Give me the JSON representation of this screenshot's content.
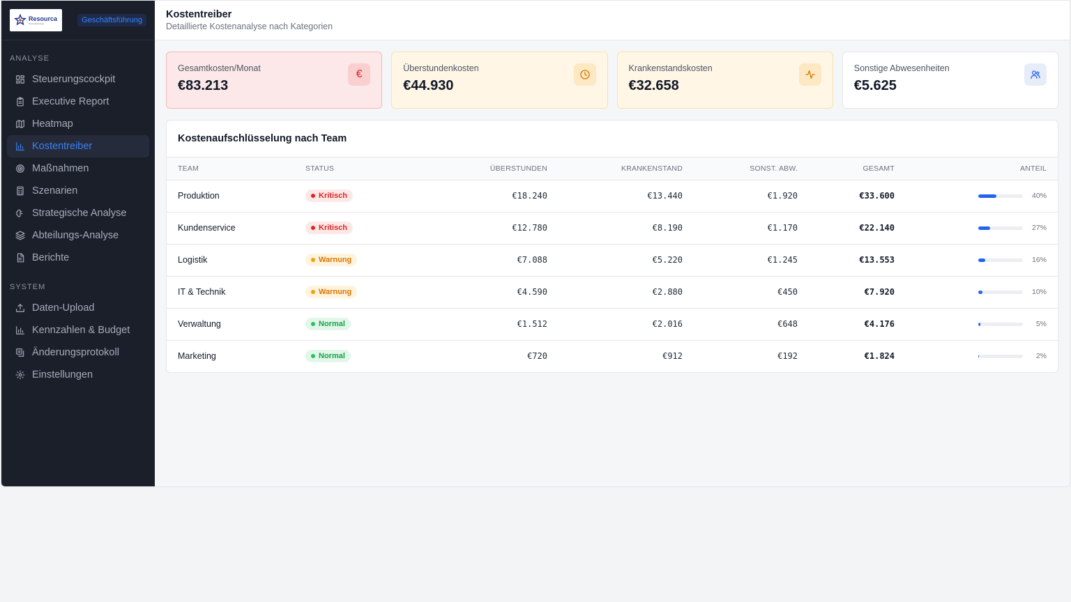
{
  "sidebar": {
    "logo_name": "Resourca",
    "logo_tag": "Personalanalyse",
    "role_badge": "Geschäftsführung",
    "sections": [
      {
        "label": "ANALYSE",
        "items": [
          {
            "label": "Steuerungscockpit",
            "icon": "layout-grid-icon"
          },
          {
            "label": "Executive Report",
            "icon": "clipboard-icon"
          },
          {
            "label": "Heatmap",
            "icon": "map-icon"
          },
          {
            "label": "Kostentreiber",
            "icon": "bar-chart-icon",
            "active": true
          },
          {
            "label": "Maßnahmen",
            "icon": "target-icon"
          },
          {
            "label": "Szenarien",
            "icon": "calculator-icon"
          },
          {
            "label": "Strategische Analyse",
            "icon": "brain-icon"
          },
          {
            "label": "Abteilungs-Analyse",
            "icon": "layers-icon"
          },
          {
            "label": "Berichte",
            "icon": "file-text-icon"
          }
        ]
      },
      {
        "label": "SYSTEM",
        "items": [
          {
            "label": "Daten-Upload",
            "icon": "upload-icon"
          },
          {
            "label": "Kennzahlen & Budget",
            "icon": "bar-chart-icon"
          },
          {
            "label": "Änderungsprotokoll",
            "icon": "history-icon"
          },
          {
            "label": "Einstellungen",
            "icon": "gear-icon"
          }
        ]
      }
    ]
  },
  "header": {
    "title": "Kostentreiber",
    "subtitle": "Detaillierte Kostenanalyse nach Kategorien"
  },
  "cards": [
    {
      "label": "Gesamtkosten/Monat",
      "value": "€83.213",
      "icon": "euro-icon",
      "tone": "red"
    },
    {
      "label": "Überstundenkosten",
      "value": "€44.930",
      "icon": "clock-icon",
      "tone": "amber"
    },
    {
      "label": "Krankenstandskosten",
      "value": "€32.658",
      "icon": "activity-icon",
      "tone": "amber"
    },
    {
      "label": "Sonstige Abwesenheiten",
      "value": "€5.625",
      "icon": "users-icon",
      "tone": "blue"
    }
  ],
  "table": {
    "title": "Kostenaufschlüsselung nach Team",
    "headers": {
      "team": "TEAM",
      "status": "STATUS",
      "ueberstunden": "ÜBERSTUNDEN",
      "krankenstand": "KRANKENSTAND",
      "sonst": "SONST. ABW.",
      "gesamt": "GESAMT",
      "anteil": "ANTEIL"
    },
    "rows": [
      {
        "team": "Produktion",
        "status": "Kritisch",
        "level": "kritisch",
        "ueberstunden": "€18.240",
        "krankenstand": "€13.440",
        "sonst": "€1.920",
        "gesamt": "€33.600",
        "anteil": "40%",
        "share": 0.4
      },
      {
        "team": "Kundenservice",
        "status": "Kritisch",
        "level": "kritisch",
        "ueberstunden": "€12.780",
        "krankenstand": "€8.190",
        "sonst": "€1.170",
        "gesamt": "€22.140",
        "anteil": "27%",
        "share": 0.27
      },
      {
        "team": "Logistik",
        "status": "Warnung",
        "level": "warnung",
        "ueberstunden": "€7.088",
        "krankenstand": "€5.220",
        "sonst": "€1.245",
        "gesamt": "€13.553",
        "anteil": "16%",
        "share": 0.16
      },
      {
        "team": "IT & Technik",
        "status": "Warnung",
        "level": "warnung",
        "ueberstunden": "€4.590",
        "krankenstand": "€2.880",
        "sonst": "€450",
        "gesamt": "€7.920",
        "anteil": "10%",
        "share": 0.1
      },
      {
        "team": "Verwaltung",
        "status": "Normal",
        "level": "normal",
        "ueberstunden": "€1.512",
        "krankenstand": "€2.016",
        "sonst": "€648",
        "gesamt": "€4.176",
        "anteil": "5%",
        "share": 0.05
      },
      {
        "team": "Marketing",
        "status": "Normal",
        "level": "normal",
        "ueberstunden": "€720",
        "krankenstand": "€912",
        "sonst": "€192",
        "gesamt": "€1.824",
        "anteil": "2%",
        "share": 0.02
      }
    ]
  },
  "colors": {
    "accent": "#3b82f6",
    "sidebar_bg": "#1b1f2a",
    "critical": "#dc2626",
    "warning": "#d97706",
    "normal": "#16a34a",
    "bar": "#2563eb"
  }
}
